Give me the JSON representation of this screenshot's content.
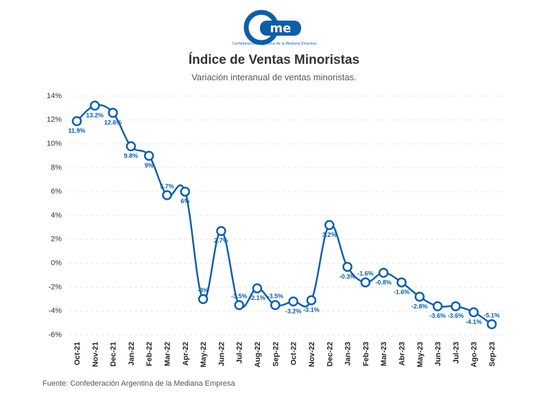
{
  "header": {
    "title": "Índice de Ventas Minoristas",
    "subtitle": "Variación interanual de ventas minoristas.",
    "logo_text": "Confederación Argentina de la Mediana Empresa"
  },
  "footer": {
    "source": "Fuente: Confederación Argentina de la Mediana Empresa"
  },
  "colors": {
    "series": "#0d5ea8",
    "logo": "#0d5ea8"
  },
  "chart_data": {
    "type": "line",
    "categories": [
      "Oct-21",
      "Nov-21",
      "Dec-21",
      "Jan-22",
      "Feb-22",
      "Mar-22",
      "Apr-22",
      "May-22",
      "Jun-22",
      "Jul-22",
      "Aug-22",
      "Sep-22",
      "Oct-22",
      "Nov-22",
      "Dec-22",
      "Jan-23",
      "Feb-23",
      "Mar-23",
      "Abr-23",
      "May-23",
      "Jun-23",
      "Jul-23",
      "Ago-23",
      "Sep-23"
    ],
    "values": [
      11.9,
      13.2,
      12.6,
      9.8,
      9,
      5.7,
      6,
      -3,
      2.7,
      -3.5,
      -2.1,
      -3.5,
      -3.2,
      -3.1,
      3.2,
      -0.3,
      -1.6,
      -0.8,
      -1.6,
      -2.8,
      -3.6,
      -3.6,
      -4.1,
      -5.1
    ],
    "data_labels": [
      "11.9%",
      "13.2%",
      "12.6%",
      "9.8%",
      "9%",
      "5.7%",
      "6%",
      "-3%",
      "2.7%",
      "-3.5%",
      "-2.1%",
      "-3.5%",
      "-3.2%",
      "-3.1%",
      "3.2%",
      "-0.3%",
      "-1.6%",
      "-0.8%",
      "-1.6%",
      "-2.8%",
      "-3.6%",
      "-3.6%",
      "-4.1%",
      "-5.1%"
    ],
    "yticks": [
      "14%",
      "12%",
      "10%",
      "8%",
      "6%",
      "4%",
      "2%",
      "0%",
      "-2%",
      "-4%",
      "-6%"
    ],
    "ylim": [
      -6,
      14
    ],
    "grid": true,
    "legend": "none"
  }
}
